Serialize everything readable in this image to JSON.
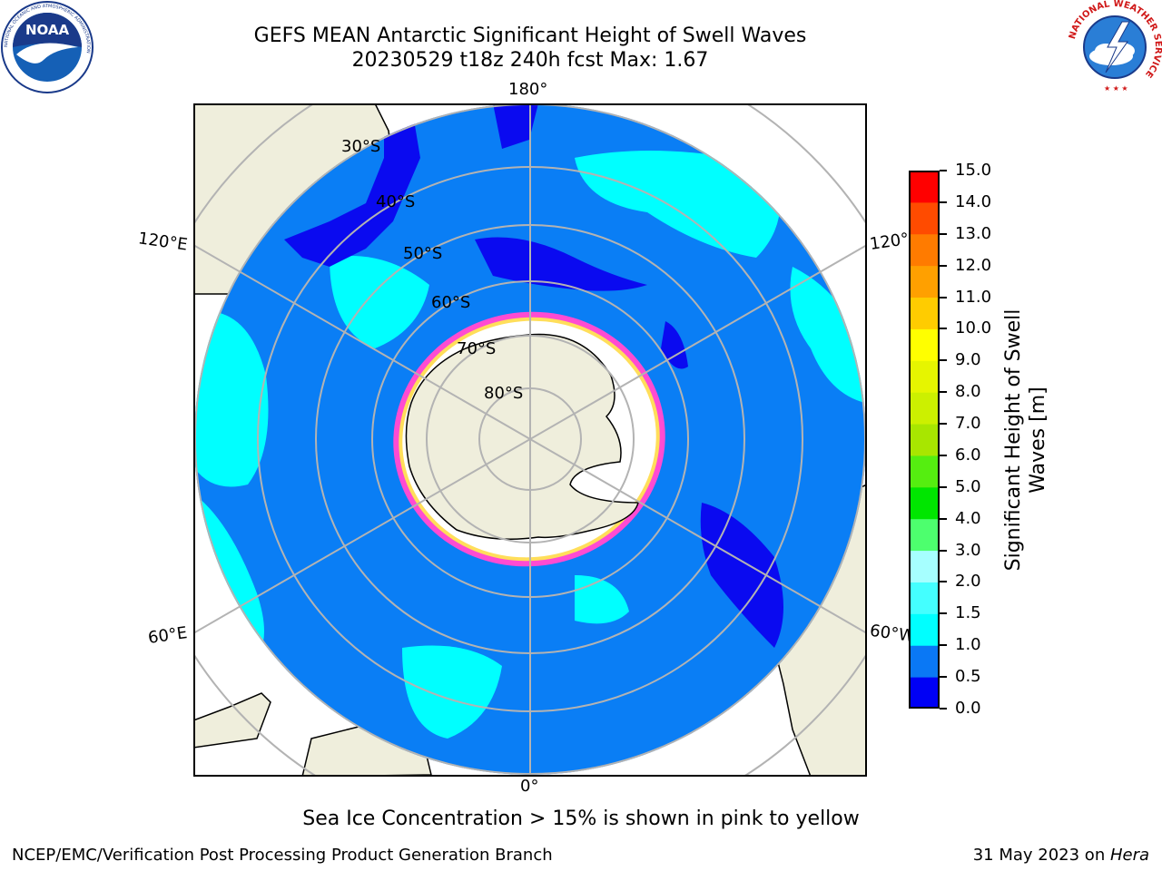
{
  "title": {
    "line1": "GEFS MEAN Antarctic Significant Height of Swell Waves",
    "line2": "20230529 t18z 240h fcst   Max: 1.67"
  },
  "logos": {
    "left": "NOAA",
    "left_ring": "NATIONAL OCEANIC AND ATMOSPHERIC ADMINISTRATION",
    "left_ring_bottom": "U.S. DEPARTMENT OF COMMERCE",
    "right_ring": "NATIONAL WEATHER SERVICE"
  },
  "map": {
    "longitude_labels": [
      "180°",
      "120°E",
      "120°",
      "60°E",
      "60°W",
      "0°"
    ],
    "latitude_labels": [
      "30°S",
      "40°S",
      "50°S",
      "60°S",
      "70°S",
      "80°S"
    ],
    "colors": {
      "ocean_low": "#0a0af0",
      "ocean_mid": "#0a7ef5",
      "ocean_high": "#00ffff",
      "land": "#efeedc",
      "ice_edge": "#ff4bd2",
      "ice": "#ffffff",
      "grid": "#b3b3b3"
    }
  },
  "colorbar": {
    "label_line1": "Significant Height of Swell",
    "label_line2": "Waves [m]",
    "ticks": [
      "0.0",
      "0.5",
      "1.0",
      "1.5",
      "2.0",
      "3.0",
      "4.0",
      "5.0",
      "6.0",
      "7.0",
      "8.0",
      "9.0",
      "10.0",
      "11.0",
      "12.0",
      "13.0",
      "14.0",
      "15.0"
    ],
    "colors": [
      "#0000f5",
      "#0a78f5",
      "#00ffff",
      "#44ffff",
      "#a6ffff",
      "#4dff6e",
      "#00e600",
      "#55ee10",
      "#a8e600",
      "#ccf000",
      "#e6f500",
      "#ffff00",
      "#ffcc00",
      "#ffa000",
      "#ff7b00",
      "#ff4b00",
      "#ff0000"
    ]
  },
  "note": "Sea Ice Concentration > 15% is shown in pink to yellow",
  "footer": {
    "left": "NCEP/EMC/Verification Post Processing Product Generation Branch",
    "date": "31 May 2023 on ",
    "machine": "Hera"
  }
}
